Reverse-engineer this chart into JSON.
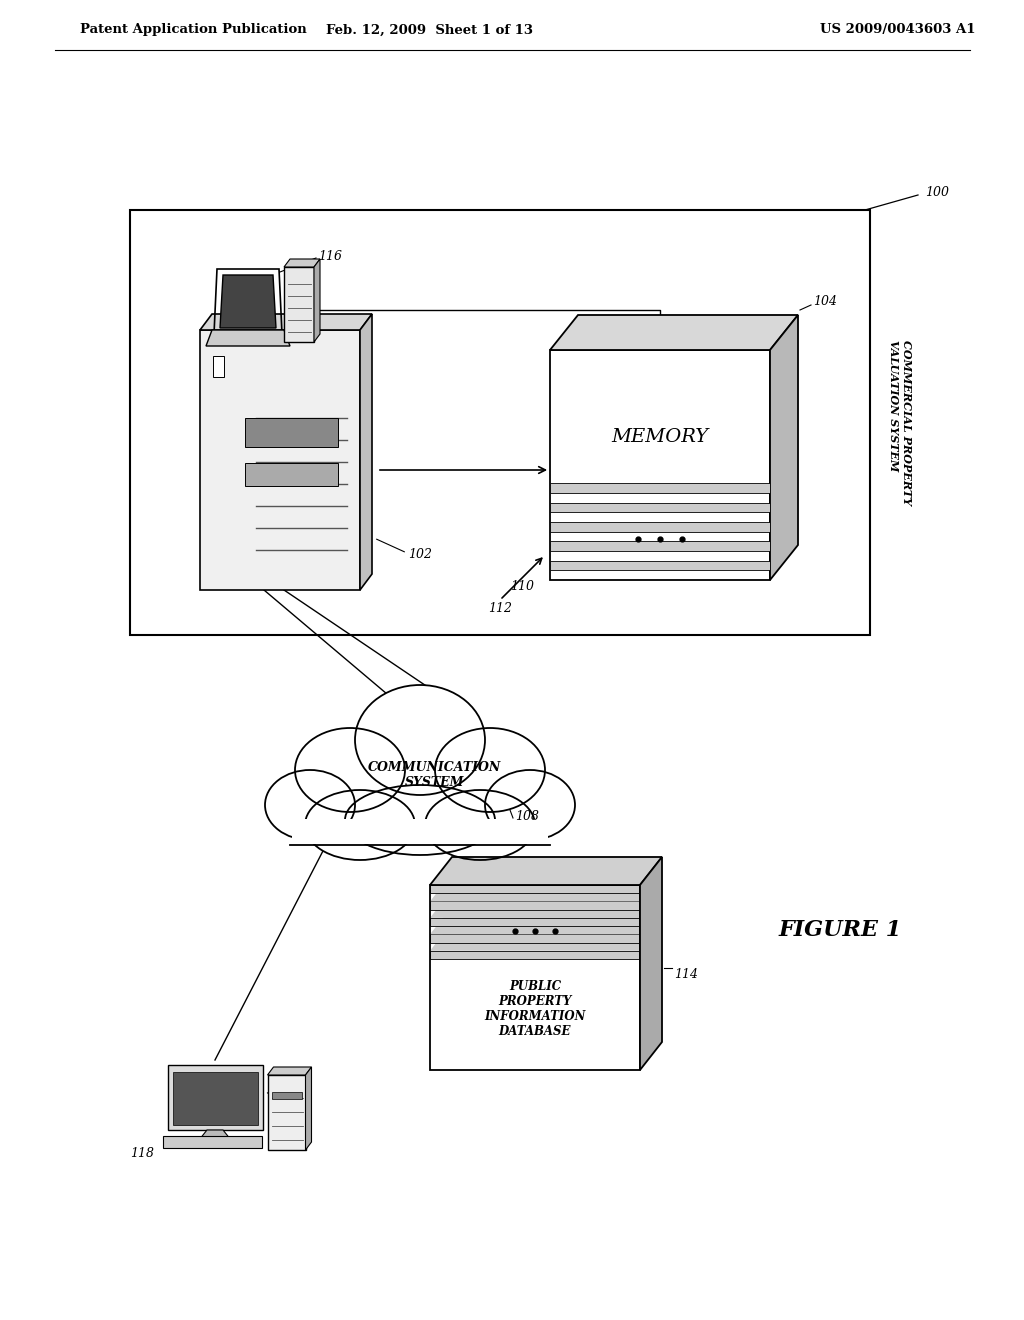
{
  "bg_color": "#ffffff",
  "header_left": "Patent Application Publication",
  "header_mid": "Feb. 12, 2009  Sheet 1 of 13",
  "header_right": "US 2009/0043603 A1",
  "figure_label": "FIGURE 1"
}
